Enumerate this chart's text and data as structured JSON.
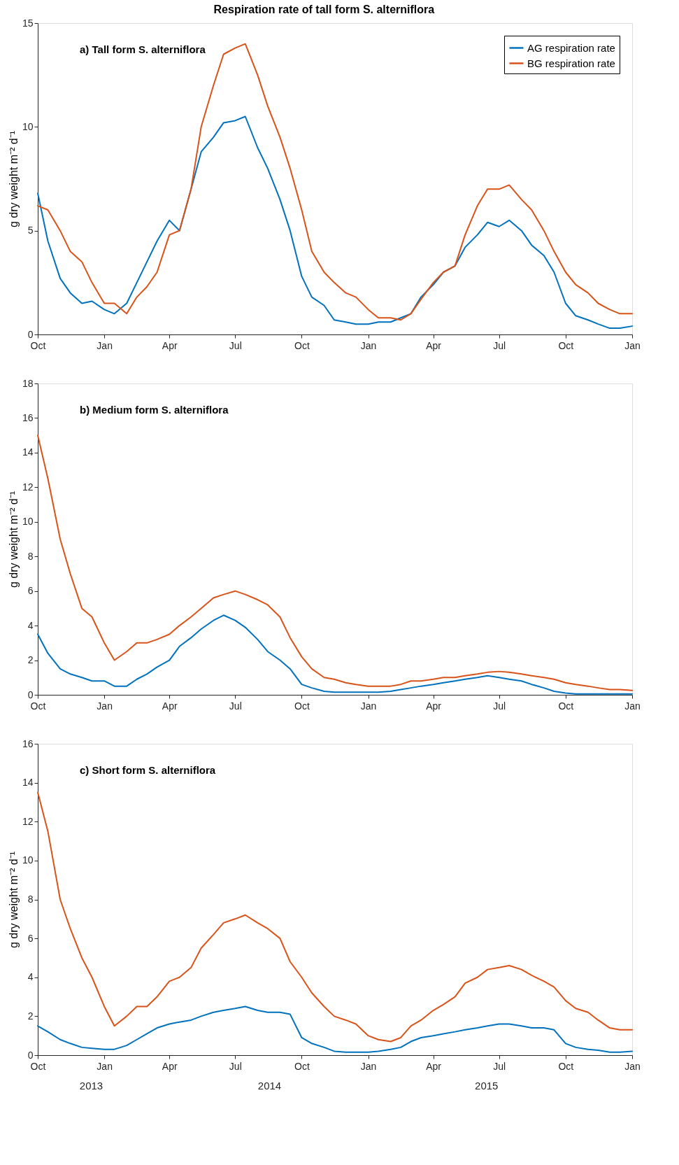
{
  "chart_data": [
    {
      "type": "line",
      "title": "Respiration rate of tall form S. alterniflora",
      "ylabel": "g dry weight m⁻² d⁻¹",
      "annotations": [
        "a) Tall form S. alterniflora"
      ],
      "legend": "top right",
      "grid": false,
      "xlim": [
        "2013-10-01",
        "2016-01-01"
      ],
      "ylim": [
        0,
        15
      ],
      "yticks": [
        0,
        5,
        10,
        15
      ],
      "xticks": [
        {
          "value": "2013-10-01",
          "label": "Oct"
        },
        {
          "value": "2014-01-01",
          "label": "Jan"
        },
        {
          "value": "2014-04-01",
          "label": "Apr"
        },
        {
          "value": "2014-07-01",
          "label": "Jul"
        },
        {
          "value": "2014-10-01",
          "label": "Oct"
        },
        {
          "value": "2015-01-01",
          "label": "Jan"
        },
        {
          "value": "2015-04-01",
          "label": "Apr"
        },
        {
          "value": "2015-07-01",
          "label": "Jul"
        },
        {
          "value": "2015-10-01",
          "label": "Oct"
        },
        {
          "value": "2016-01-01",
          "label": "Jan"
        }
      ],
      "x": [
        "2013-10-01",
        "2013-10-15",
        "2013-11-01",
        "2013-11-15",
        "2013-12-01",
        "2013-12-15",
        "2014-01-01",
        "2014-01-15",
        "2014-02-01",
        "2014-02-15",
        "2014-03-01",
        "2014-03-15",
        "2014-04-01",
        "2014-04-15",
        "2014-05-01",
        "2014-05-15",
        "2014-06-01",
        "2014-06-15",
        "2014-07-01",
        "2014-07-15",
        "2014-08-01",
        "2014-08-15",
        "2014-09-01",
        "2014-09-15",
        "2014-10-01",
        "2014-10-15",
        "2014-11-01",
        "2014-11-15",
        "2014-12-01",
        "2014-12-15",
        "2015-01-01",
        "2015-01-15",
        "2015-02-01",
        "2015-02-15",
        "2015-03-01",
        "2015-03-15",
        "2015-04-01",
        "2015-04-15",
        "2015-05-01",
        "2015-05-15",
        "2015-06-01",
        "2015-06-15",
        "2015-07-01",
        "2015-07-15",
        "2015-08-01",
        "2015-08-15",
        "2015-09-01",
        "2015-09-15",
        "2015-10-01",
        "2015-10-15",
        "2015-11-01",
        "2015-11-15",
        "2015-12-01",
        "2015-12-15",
        "2016-01-01"
      ],
      "series": [
        {
          "name": "AG respiration rate",
          "color": "#0072bd",
          "values": [
            6.8,
            4.5,
            2.7,
            2.0,
            1.5,
            1.6,
            1.2,
            1.0,
            1.5,
            2.5,
            3.5,
            4.5,
            5.5,
            5.0,
            7.0,
            8.8,
            9.5,
            10.2,
            10.3,
            10.5,
            9.0,
            8.0,
            6.5,
            5.0,
            2.8,
            1.8,
            1.4,
            0.7,
            0.6,
            0.5,
            0.5,
            0.6,
            0.6,
            0.8,
            1.0,
            1.8,
            2.4,
            3.0,
            3.3,
            4.2,
            4.8,
            5.4,
            5.2,
            5.5,
            5.0,
            4.3,
            3.8,
            3.0,
            1.5,
            0.9,
            0.7,
            0.5,
            0.3,
            0.3,
            0.4
          ]
        },
        {
          "name": "BG respiration rate",
          "color": "#d95319",
          "values": [
            6.2,
            6.0,
            5.0,
            4.0,
            3.5,
            2.5,
            1.5,
            1.5,
            1.0,
            1.8,
            2.3,
            3.0,
            4.8,
            5.0,
            7.0,
            10.0,
            12.0,
            13.5,
            13.8,
            14.0,
            12.5,
            11.0,
            9.5,
            8.0,
            6.0,
            4.0,
            3.0,
            2.5,
            2.0,
            1.8,
            1.2,
            0.8,
            0.8,
            0.7,
            1.0,
            1.7,
            2.5,
            3.0,
            3.3,
            4.8,
            6.2,
            7.0,
            7.0,
            7.2,
            6.5,
            6.0,
            5.0,
            4.0,
            3.0,
            2.4,
            2.0,
            1.5,
            1.2,
            1.0,
            1.0
          ]
        }
      ]
    },
    {
      "type": "line",
      "ylabel": "g dry weight m⁻² d⁻¹",
      "annotations": [
        "b) Medium form S. alterniflora"
      ],
      "grid": false,
      "xlim": [
        "2013-10-01",
        "2016-01-01"
      ],
      "ylim": [
        0,
        18
      ],
      "yticks": [
        0,
        2,
        4,
        6,
        8,
        10,
        12,
        14,
        16,
        18
      ],
      "xticks": [
        {
          "value": "2013-10-01",
          "label": "Oct"
        },
        {
          "value": "2014-01-01",
          "label": "Jan"
        },
        {
          "value": "2014-04-01",
          "label": "Apr"
        },
        {
          "value": "2014-07-01",
          "label": "Jul"
        },
        {
          "value": "2014-10-01",
          "label": "Oct"
        },
        {
          "value": "2015-01-01",
          "label": "Jan"
        },
        {
          "value": "2015-04-01",
          "label": "Apr"
        },
        {
          "value": "2015-07-01",
          "label": "Jul"
        },
        {
          "value": "2015-10-01",
          "label": "Oct"
        },
        {
          "value": "2016-01-01",
          "label": "Jan"
        }
      ],
      "x": [
        "2013-10-01",
        "2013-10-15",
        "2013-11-01",
        "2013-11-15",
        "2013-12-01",
        "2013-12-15",
        "2014-01-01",
        "2014-01-15",
        "2014-02-01",
        "2014-02-15",
        "2014-03-01",
        "2014-03-15",
        "2014-04-01",
        "2014-04-15",
        "2014-05-01",
        "2014-05-15",
        "2014-06-01",
        "2014-06-15",
        "2014-07-01",
        "2014-07-15",
        "2014-08-01",
        "2014-08-15",
        "2014-09-01",
        "2014-09-15",
        "2014-10-01",
        "2014-10-15",
        "2014-11-01",
        "2014-11-15",
        "2014-12-01",
        "2014-12-15",
        "2015-01-01",
        "2015-01-15",
        "2015-02-01",
        "2015-02-15",
        "2015-03-01",
        "2015-03-15",
        "2015-04-01",
        "2015-04-15",
        "2015-05-01",
        "2015-05-15",
        "2015-06-01",
        "2015-06-15",
        "2015-07-01",
        "2015-07-15",
        "2015-08-01",
        "2015-08-15",
        "2015-09-01",
        "2015-09-15",
        "2015-10-01",
        "2015-10-15",
        "2015-11-01",
        "2015-11-15",
        "2015-12-01",
        "2015-12-15",
        "2016-01-01"
      ],
      "series": [
        {
          "color": "#0072bd",
          "values": [
            3.5,
            2.4,
            1.5,
            1.2,
            1.0,
            0.8,
            0.8,
            0.5,
            0.5,
            0.9,
            1.2,
            1.6,
            2.0,
            2.8,
            3.3,
            3.8,
            4.3,
            4.6,
            4.3,
            3.9,
            3.2,
            2.5,
            2.0,
            1.5,
            0.6,
            0.4,
            0.2,
            0.15,
            0.15,
            0.15,
            0.15,
            0.15,
            0.2,
            0.3,
            0.4,
            0.5,
            0.6,
            0.7,
            0.8,
            0.9,
            1.0,
            1.1,
            1.0,
            0.9,
            0.8,
            0.6,
            0.4,
            0.2,
            0.1,
            0.05,
            0.05,
            0.05,
            0.05,
            0.05,
            0.05
          ]
        },
        {
          "color": "#d95319",
          "values": [
            15.0,
            12.5,
            9.0,
            7.0,
            5.0,
            4.5,
            3.0,
            2.0,
            2.5,
            3.0,
            3.0,
            3.2,
            3.5,
            4.0,
            4.5,
            5.0,
            5.6,
            5.8,
            6.0,
            5.8,
            5.5,
            5.2,
            4.5,
            3.3,
            2.2,
            1.5,
            1.0,
            0.9,
            0.7,
            0.6,
            0.5,
            0.5,
            0.5,
            0.6,
            0.8,
            0.8,
            0.9,
            1.0,
            1.0,
            1.1,
            1.2,
            1.3,
            1.35,
            1.3,
            1.2,
            1.1,
            1.0,
            0.9,
            0.7,
            0.6,
            0.5,
            0.4,
            0.3,
            0.3,
            0.25
          ]
        }
      ]
    },
    {
      "type": "line",
      "ylabel": "g dry weight m⁻² d⁻¹",
      "annotations": [
        "c) Short form S. alterniflora",
        "2013",
        "2014",
        "2015"
      ],
      "grid": false,
      "xlim": [
        "2013-10-01",
        "2016-01-01"
      ],
      "ylim": [
        0,
        16
      ],
      "yticks": [
        0,
        2,
        4,
        6,
        8,
        10,
        12,
        14,
        16
      ],
      "xticks": [
        {
          "value": "2013-10-01",
          "label": "Oct"
        },
        {
          "value": "2014-01-01",
          "label": "Jan"
        },
        {
          "value": "2014-04-01",
          "label": "Apr"
        },
        {
          "value": "2014-07-01",
          "label": "Jul"
        },
        {
          "value": "2014-10-01",
          "label": "Oct"
        },
        {
          "value": "2015-01-01",
          "label": "Jan"
        },
        {
          "value": "2015-04-01",
          "label": "Apr"
        },
        {
          "value": "2015-07-01",
          "label": "Jul"
        },
        {
          "value": "2015-10-01",
          "label": "Oct"
        },
        {
          "value": "2016-01-01",
          "label": "Jan"
        }
      ],
      "x": [
        "2013-10-01",
        "2013-10-15",
        "2013-11-01",
        "2013-11-15",
        "2013-12-01",
        "2013-12-15",
        "2014-01-01",
        "2014-01-15",
        "2014-02-01",
        "2014-02-15",
        "2014-03-01",
        "2014-03-15",
        "2014-04-01",
        "2014-04-15",
        "2014-05-01",
        "2014-05-15",
        "2014-06-01",
        "2014-06-15",
        "2014-07-01",
        "2014-07-15",
        "2014-08-01",
        "2014-08-15",
        "2014-09-01",
        "2014-09-15",
        "2014-10-01",
        "2014-10-15",
        "2014-11-01",
        "2014-11-15",
        "2014-12-01",
        "2014-12-15",
        "2015-01-01",
        "2015-01-15",
        "2015-02-01",
        "2015-02-15",
        "2015-03-01",
        "2015-03-15",
        "2015-04-01",
        "2015-04-15",
        "2015-05-01",
        "2015-05-15",
        "2015-06-01",
        "2015-06-15",
        "2015-07-01",
        "2015-07-15",
        "2015-08-01",
        "2015-08-15",
        "2015-09-01",
        "2015-09-15",
        "2015-10-01",
        "2015-10-15",
        "2015-11-01",
        "2015-11-15",
        "2015-12-01",
        "2015-12-15",
        "2016-01-01"
      ],
      "series": [
        {
          "color": "#0072bd",
          "values": [
            1.5,
            1.2,
            0.8,
            0.6,
            0.4,
            0.35,
            0.3,
            0.3,
            0.5,
            0.8,
            1.1,
            1.4,
            1.6,
            1.7,
            1.8,
            2.0,
            2.2,
            2.3,
            2.4,
            2.5,
            2.3,
            2.2,
            2.2,
            2.1,
            0.9,
            0.6,
            0.4,
            0.2,
            0.15,
            0.15,
            0.15,
            0.2,
            0.3,
            0.4,
            0.7,
            0.9,
            1.0,
            1.1,
            1.2,
            1.3,
            1.4,
            1.5,
            1.6,
            1.6,
            1.5,
            1.4,
            1.4,
            1.3,
            0.6,
            0.4,
            0.3,
            0.25,
            0.15,
            0.15,
            0.2
          ]
        },
        {
          "color": "#d95319",
          "values": [
            13.5,
            11.5,
            8.0,
            6.5,
            5.0,
            4.0,
            2.5,
            1.5,
            2.0,
            2.5,
            2.5,
            3.0,
            3.8,
            4.0,
            4.5,
            5.5,
            6.2,
            6.8,
            7.0,
            7.2,
            6.8,
            6.5,
            6.0,
            4.8,
            4.0,
            3.2,
            2.5,
            2.0,
            1.8,
            1.6,
            1.0,
            0.8,
            0.7,
            0.9,
            1.5,
            1.8,
            2.3,
            2.6,
            3.0,
            3.7,
            4.0,
            4.4,
            4.5,
            4.6,
            4.4,
            4.1,
            3.8,
            3.5,
            2.8,
            2.4,
            2.2,
            1.8,
            1.4,
            1.3,
            1.3
          ]
        }
      ]
    }
  ]
}
